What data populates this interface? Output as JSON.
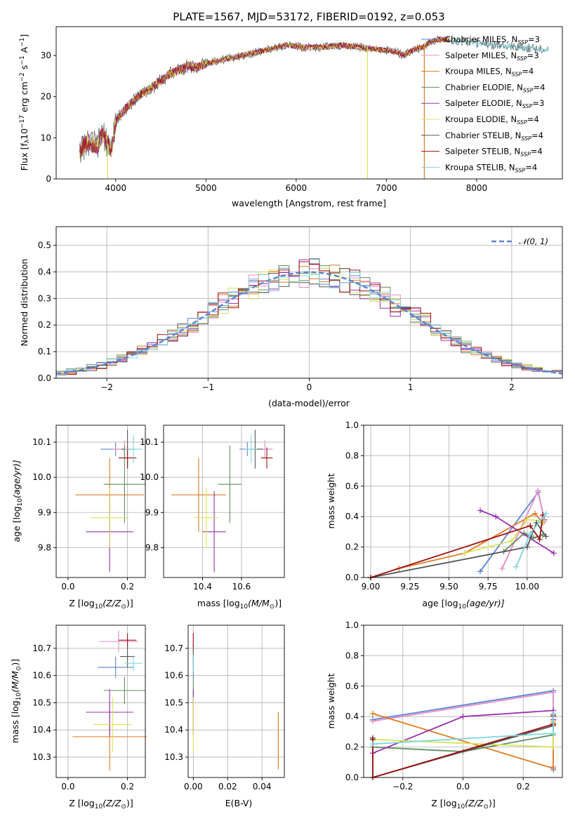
{
  "colors": {
    "chabrier_miles": "#5B84D6",
    "salpeter_miles": "#E88BC4",
    "kroupa_miles": "#E07B22",
    "chabrier_elodie": "#5E8C5E",
    "salpeter_elodie": "#9B30B0",
    "kroupa_elodie": "#D8E45A",
    "chabrier_stelib": "#555555",
    "salpeter_stelib": "#A01010",
    "kroupa_stelib": "#7DD6DE"
  },
  "chart_data": [
    {
      "type": "line",
      "title": "PLATE=1567, MJD=53172, FIBERID=0192, z=0.053",
      "xlabel": "wavelength [Angstrom, rest frame]",
      "ylabel_parts": [
        "Flux [f",
        "λ",
        "10",
        "−17",
        " erg cm",
        "−2",
        " s",
        "−1",
        " A",
        "−1",
        "]"
      ],
      "xlim": [
        3340,
        8950
      ],
      "ylim": [
        0,
        37
      ],
      "xticks": [
        4000,
        5000,
        6000,
        7000,
        8000
      ],
      "yticks": [
        0,
        10,
        20,
        30
      ],
      "legend_position": "right",
      "spectrum_shape_x": [
        3600,
        3700,
        3800,
        3850,
        3950,
        4000,
        4100,
        4200,
        4300,
        4400,
        4500,
        4600,
        4700,
        4800,
        4900,
        5000,
        5100,
        5200,
        5300,
        5500,
        5700,
        5900,
        6100,
        6300,
        6500,
        6700,
        6900,
        7100,
        7200,
        7300,
        7400,
        7500,
        7600,
        7800,
        8000,
        8200,
        8500,
        8800
      ],
      "spectrum_shape_y": [
        7,
        9,
        8,
        11,
        7,
        14,
        17,
        19,
        21,
        22,
        24,
        25.5,
        26.5,
        27.5,
        27,
        28,
        28.5,
        29,
        29.5,
        30.5,
        31.5,
        32.5,
        32,
        32,
        32.5,
        32,
        31.5,
        31,
        30,
        31.5,
        32,
        33.5,
        34,
        33.5,
        33,
        32.5,
        32,
        31.5
      ],
      "series": [
        {
          "name": "Chabrier MILES, N_SSP=3",
          "label_main": "Chabrier MILES, N",
          "label_sub": "SSP",
          "label_tail": "=3",
          "color_key": "chabrier_miles"
        },
        {
          "name": "Salpeter MILES, N_SSP=3",
          "label_main": "Salpeter MILES, N",
          "label_sub": "SSP",
          "label_tail": "=3",
          "color_key": "salpeter_miles"
        },
        {
          "name": "Kroupa MILES, N_SSP=4",
          "label_main": "Kroupa MILES, N",
          "label_sub": "SSP",
          "label_tail": "=4",
          "color_key": "kroupa_miles"
        },
        {
          "name": "Chabrier ELODIE, N_SSP=4",
          "label_main": "Chabrier ELODIE, N",
          "label_sub": "SSP",
          "label_tail": "=4",
          "color_key": "chabrier_elodie"
        },
        {
          "name": "Salpeter ELODIE, N_SSP=3",
          "label_main": "Salpeter ELODIE, N",
          "label_sub": "SSP",
          "label_tail": "=3",
          "color_key": "salpeter_elodie"
        },
        {
          "name": "Kroupa ELODIE, N_SSP=4",
          "label_main": "Kroupa ELODIE, N",
          "label_sub": "SSP",
          "label_tail": "=4",
          "color_key": "kroupa_elodie"
        },
        {
          "name": "Chabrier STELIB, N_SSP=4",
          "label_main": "Chabrier STELIB, N",
          "label_sub": "SSP",
          "label_tail": "=4",
          "color_key": "chabrier_stelib"
        },
        {
          "name": "Salpeter STELIB, N_SSP=4",
          "label_main": "Salpeter STELIB, N",
          "label_sub": "SSP",
          "label_tail": "=4",
          "color_key": "salpeter_stelib"
        },
        {
          "name": "Kroupa STELIB, N_SSP=4",
          "label_main": "Kroupa STELIB, N",
          "label_sub": "SSP",
          "label_tail": "=4",
          "color_key": "kroupa_stelib"
        }
      ],
      "drops": [
        {
          "x": 3910,
          "color_key": "kroupa_elodie"
        },
        {
          "x": 6790,
          "color_key": "kroupa_elodie"
        },
        {
          "x": 7420,
          "color_key": "kroupa_miles"
        }
      ]
    },
    {
      "type": "histogram",
      "xlabel": "(data-model)/error",
      "ylabel": "Normed distribution",
      "xlim": [
        -2.5,
        2.5
      ],
      "ylim": [
        0,
        0.57
      ],
      "xticks": [
        -2,
        -1,
        0,
        1,
        2
      ],
      "xticklabels": [
        "−2",
        "−1",
        "0",
        "1",
        "2"
      ],
      "yticks": [
        0.0,
        0.1,
        0.2,
        0.3,
        0.4,
        0.5
      ],
      "bin_width": 0.1,
      "gaussian_label": "𝒩(0, 1)",
      "gaussian_color": "#5B84D6",
      "legend_position": "top-right"
    },
    {
      "type": "scatter",
      "panel": "age-vs-Z",
      "xlabel_parts": [
        "Z [log",
        "10",
        "(Z/Z",
        "⊙",
        ")]"
      ],
      "ylabel_parts": [
        "age  [log",
        "10",
        "(age/yr)]"
      ],
      "xlim": [
        -0.04,
        0.26
      ],
      "ylim": [
        9.715,
        10.148
      ],
      "xticks": [
        0.0,
        0.2
      ],
      "yticks": [
        9.8,
        9.9,
        10.0,
        10.1
      ],
      "points": [
        {
          "color_key": "chabrier_miles",
          "x": 0.16,
          "xerr": 0.05,
          "y": 10.08,
          "yerr": 0.02
        },
        {
          "color_key": "salpeter_miles",
          "x": 0.19,
          "xerr": 0.04,
          "y": 10.08,
          "yerr": 0.025
        },
        {
          "color_key": "kroupa_miles",
          "x": 0.14,
          "xerr": 0.115,
          "y": 9.95,
          "yerr": 0.105
        },
        {
          "color_key": "chabrier_elodie",
          "x": 0.19,
          "xerr": 0.07,
          "y": 9.98,
          "yerr": 0.11
        },
        {
          "color_key": "salpeter_elodie",
          "x": 0.14,
          "xerr": 0.08,
          "y": 9.845,
          "yerr": 0.115
        },
        {
          "color_key": "kroupa_elodie",
          "x": 0.14,
          "xerr": 0.065,
          "y": 9.885,
          "yerr": 0.085
        },
        {
          "color_key": "chabrier_stelib",
          "x": 0.2,
          "xerr": 0.02,
          "y": 10.08,
          "yerr": 0.055
        },
        {
          "color_key": "salpeter_stelib",
          "x": 0.2,
          "xerr": 0.03,
          "y": 10.055,
          "yerr": 0.03
        },
        {
          "color_key": "kroupa_stelib",
          "x": 0.22,
          "xerr": 0.03,
          "y": 10.08,
          "yerr": 0.04
        }
      ]
    },
    {
      "type": "scatter",
      "panel": "age-vs-mass",
      "xlabel_parts": [
        "mass [log",
        "10",
        "(M/M",
        "⊙",
        ")]"
      ],
      "xlim": [
        10.2,
        10.82
      ],
      "ylim": [
        9.715,
        10.148
      ],
      "xticks": [
        10.4,
        10.6
      ],
      "yticks": [
        9.8,
        9.9,
        10.0,
        10.1
      ],
      "points": [
        {
          "color_key": "chabrier_miles",
          "x": 10.63,
          "xerr": 0.04,
          "y": 10.08,
          "yerr": 0.02
        },
        {
          "color_key": "salpeter_miles",
          "x": 10.72,
          "xerr": 0.04,
          "y": 10.08,
          "yerr": 0.025
        },
        {
          "color_key": "kroupa_miles",
          "x": 10.38,
          "xerr": 0.14,
          "y": 9.95,
          "yerr": 0.105
        },
        {
          "color_key": "chabrier_elodie",
          "x": 10.54,
          "xerr": 0.06,
          "y": 9.98,
          "yerr": 0.11
        },
        {
          "color_key": "salpeter_elodie",
          "x": 10.46,
          "xerr": 0.06,
          "y": 9.845,
          "yerr": 0.115
        },
        {
          "color_key": "kroupa_elodie",
          "x": 10.42,
          "xerr": 0.06,
          "y": 9.885,
          "yerr": 0.085
        },
        {
          "color_key": "chabrier_stelib",
          "x": 10.67,
          "xerr": 0.04,
          "y": 10.08,
          "yerr": 0.055
        },
        {
          "color_key": "salpeter_stelib",
          "x": 10.73,
          "xerr": 0.03,
          "y": 10.055,
          "yerr": 0.03
        },
        {
          "color_key": "kroupa_stelib",
          "x": 10.65,
          "xerr": 0.03,
          "y": 10.08,
          "yerr": 0.04
        }
      ]
    },
    {
      "type": "line",
      "panel": "weight-vs-age",
      "xlabel_parts": [
        "age  [log",
        "10",
        "(age/yr)]"
      ],
      "ylabel": "mass weight",
      "xlim": [
        8.955,
        10.225
      ],
      "ylim": [
        0.0,
        1.0
      ],
      "xticks": [
        9.0,
        9.25,
        9.5,
        9.75,
        10.0
      ],
      "xticklabels": [
        "9.00",
        "9.25",
        "9.50",
        "9.75",
        "10.00"
      ],
      "yticks": [
        0.0,
        0.2,
        0.4,
        0.6,
        0.8,
        1.0
      ],
      "series": [
        {
          "color_key": "chabrier_miles",
          "x": [
            9.7,
            10.07,
            10.11
          ],
          "y": [
            0.04,
            0.56,
            0.38
          ]
        },
        {
          "color_key": "salpeter_miles",
          "x": [
            9.84,
            10.07,
            10.11
          ],
          "y": [
            0.06,
            0.57,
            0.37
          ]
        },
        {
          "color_key": "kroupa_miles",
          "x": [
            9.18,
            9.6,
            10.05,
            10.1
          ],
          "y": [
            0.06,
            0.16,
            0.42,
            0.36
          ]
        },
        {
          "color_key": "chabrier_elodie",
          "x": [
            9.85,
            9.98,
            10.04,
            10.1
          ],
          "y": [
            0.17,
            0.29,
            0.26,
            0.28
          ]
        },
        {
          "color_key": "salpeter_elodie",
          "x": [
            9.7,
            9.8,
            10.17
          ],
          "y": [
            0.44,
            0.4,
            0.16
          ]
        },
        {
          "color_key": "kroupa_elodie",
          "x": [
            9.6,
            9.9,
            10.0,
            10.1
          ],
          "y": [
            0.16,
            0.24,
            0.38,
            0.37
          ]
        },
        {
          "color_key": "chabrier_stelib",
          "x": [
            9.0,
            10.0,
            10.06,
            10.12
          ],
          "y": [
            0.0,
            0.2,
            0.36,
            0.27
          ]
        },
        {
          "color_key": "salpeter_stelib",
          "x": [
            9.0,
            10.02,
            10.08,
            10.1
          ],
          "y": [
            0.0,
            0.34,
            0.25,
            0.41
          ]
        },
        {
          "color_key": "kroupa_stelib",
          "x": [
            9.93,
            10.02,
            10.12
          ],
          "y": [
            0.07,
            0.29,
            0.42
          ]
        }
      ]
    },
    {
      "type": "scatter",
      "panel": "mass-vs-Z",
      "xlabel_parts": [
        "Z [log",
        "10",
        "(Z/Z",
        "⊙",
        ")]"
      ],
      "ylabel_parts": [
        "mass [log",
        "10",
        "(M/M",
        "⊙",
        ")]"
      ],
      "xlim": [
        -0.04,
        0.26
      ],
      "ylim": [
        10.225,
        10.785
      ],
      "xticks": [
        0.0,
        0.2
      ],
      "yticks": [
        10.3,
        10.4,
        10.5,
        10.6,
        10.7
      ],
      "points": [
        {
          "color_key": "chabrier_miles",
          "x": 0.16,
          "xerr": 0.06,
          "y": 10.63,
          "yerr": 0.04
        },
        {
          "color_key": "salpeter_miles",
          "x": 0.17,
          "xerr": 0.065,
          "y": 10.725,
          "yerr": 0.04
        },
        {
          "color_key": "kroupa_miles",
          "x": 0.14,
          "xerr": 0.125,
          "y": 10.375,
          "yerr": 0.125
        },
        {
          "color_key": "chabrier_elodie",
          "x": 0.19,
          "xerr": 0.07,
          "y": 10.545,
          "yerr": 0.05
        },
        {
          "color_key": "salpeter_elodie",
          "x": 0.14,
          "xerr": 0.08,
          "y": 10.465,
          "yerr": 0.085
        },
        {
          "color_key": "kroupa_elodie",
          "x": 0.15,
          "xerr": 0.065,
          "y": 10.42,
          "yerr": 0.1
        },
        {
          "color_key": "chabrier_stelib",
          "x": 0.2,
          "xerr": 0.025,
          "y": 10.67,
          "yerr": 0.04
        },
        {
          "color_key": "salpeter_stelib",
          "x": 0.2,
          "xerr": 0.03,
          "y": 10.73,
          "yerr": 0.025
        },
        {
          "color_key": "kroupa_stelib",
          "x": 0.22,
          "xerr": 0.03,
          "y": 10.645,
          "yerr": 0.03
        }
      ]
    },
    {
      "type": "scatter",
      "panel": "mass-vs-EBV",
      "xlabel": "E(B-V)",
      "xlim": [
        -0.003,
        0.053
      ],
      "ylim": [
        10.225,
        10.785
      ],
      "xticks": [
        0.0,
        0.02,
        0.04
      ],
      "xticklabels": [
        "0.00",
        "0.02",
        "0.04"
      ],
      "yticks": [
        10.3,
        10.4,
        10.5,
        10.6,
        10.7
      ],
      "points": [
        {
          "color_key": "chabrier_miles",
          "x": 0.0,
          "y": 10.63,
          "yerr": 0.04
        },
        {
          "color_key": "salpeter_miles",
          "x": 0.0,
          "y": 10.725,
          "yerr": 0.04
        },
        {
          "color_key": "kroupa_miles",
          "x": 0.0495,
          "y": 10.36,
          "yerr": 0.105
        },
        {
          "color_key": "chabrier_elodie",
          "x": 0.0,
          "y": 10.545,
          "yerr": 0.05
        },
        {
          "color_key": "salpeter_elodie",
          "x": 0.0,
          "y": 10.465,
          "yerr": 0.085
        },
        {
          "color_key": "kroupa_elodie",
          "x": 0.0,
          "y": 10.42,
          "yerr": 0.1
        },
        {
          "color_key": "chabrier_stelib",
          "x": 0.0,
          "y": 10.67,
          "yerr": 0.04
        },
        {
          "color_key": "salpeter_stelib",
          "x": 0.0,
          "y": 10.73,
          "yerr": 0.025
        },
        {
          "color_key": "kroupa_stelib",
          "x": 0.0,
          "y": 10.645,
          "yerr": 0.03
        }
      ]
    },
    {
      "type": "line",
      "panel": "weight-vs-Z",
      "xlabel_parts": [
        "Z [log",
        "10",
        "(Z/Z",
        "⊙",
        ")]"
      ],
      "ylabel": "mass weight",
      "xlim": [
        -0.33,
        0.33
      ],
      "ylim": [
        0.0,
        1.0
      ],
      "xticks": [
        -0.2,
        0.0,
        0.2
      ],
      "xticklabels": [
        "−0.2",
        "0.0",
        "0.2"
      ],
      "yticks": [
        0.0,
        0.2,
        0.4,
        0.6,
        0.8,
        1.0
      ],
      "series": [
        {
          "color_key": "chabrier_miles",
          "x": [
            -0.3,
            0.3,
            0.3
          ],
          "y": [
            0.38,
            0.57,
            0.05
          ]
        },
        {
          "color_key": "salpeter_miles",
          "x": [
            -0.3,
            0.3,
            0.3
          ],
          "y": [
            0.37,
            0.56,
            0.07
          ]
        },
        {
          "color_key": "kroupa_miles",
          "x": [
            -0.3,
            0.3,
            0.3
          ],
          "y": [
            0.42,
            0.06,
            0.36
          ]
        },
        {
          "color_key": "chabrier_elodie",
          "x": [
            -0.3,
            0.0,
            0.3,
            0.3
          ],
          "y": [
            0.2,
            0.17,
            0.28,
            0.35
          ]
        },
        {
          "color_key": "salpeter_elodie",
          "x": [
            -0.3,
            0.0,
            0.3,
            0.3
          ],
          "y": [
            0.16,
            0.4,
            0.44,
            0.38
          ]
        },
        {
          "color_key": "kroupa_elodie",
          "x": [
            -0.3,
            0.3,
            0.3
          ],
          "y": [
            0.25,
            0.2,
            0.37
          ]
        },
        {
          "color_key": "chabrier_stelib",
          "x": [
            -0.3,
            -0.3,
            0.3,
            0.3
          ],
          "y": [
            0.26,
            0.0,
            0.34,
            0.4
          ]
        },
        {
          "color_key": "salpeter_stelib",
          "x": [
            -0.3,
            -0.3,
            0.3,
            0.3
          ],
          "y": [
            0.25,
            0.0,
            0.35,
            0.41
          ]
        },
        {
          "color_key": "kroupa_stelib",
          "x": [
            -0.3,
            0.3,
            0.3
          ],
          "y": [
            0.22,
            0.29,
            0.42
          ]
        }
      ]
    }
  ]
}
